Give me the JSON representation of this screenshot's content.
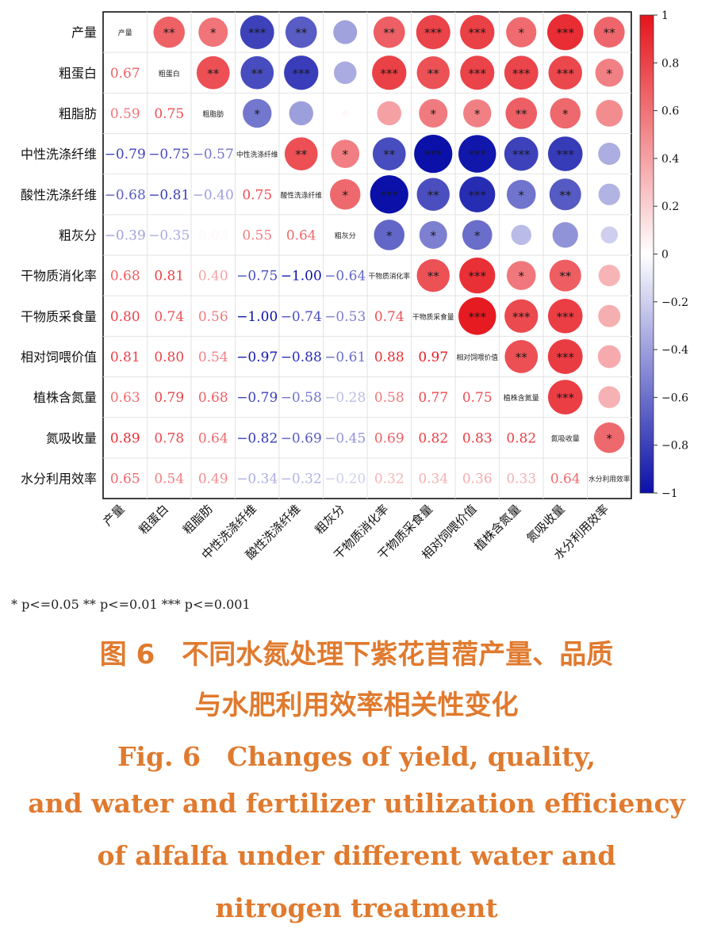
{
  "chart_data": {
    "type": "heatmap",
    "variables": [
      "产量",
      "粗蛋白",
      "粗脂肪",
      "中性洗涤纤维",
      "酸性洗涤纤维",
      "粗灰分",
      "干物质消化率",
      "干物质采食量",
      "相对饲喂价值",
      "植株含氮量",
      "氮吸收量",
      "水分利用效率"
    ],
    "diag_labels": [
      "产量",
      "粗蛋白",
      "粗脂肪",
      "中性洗涤纤维",
      "酸性洗涤纤维",
      "粗灰分",
      "干物质消化率",
      "干物质采食量",
      "相对饲喂价值",
      "植株含氮量",
      "氮吸收量",
      "水分利用效率"
    ],
    "matrix": [
      [
        1,
        0.67,
        0.59,
        -0.79,
        -0.68,
        -0.39,
        0.68,
        0.8,
        0.81,
        0.63,
        0.89,
        0.65
      ],
      [
        0.67,
        1,
        0.75,
        -0.75,
        -0.81,
        -0.35,
        0.81,
        0.74,
        0.8,
        0.79,
        0.78,
        0.54
      ],
      [
        0.59,
        0.75,
        1,
        -0.57,
        -0.4,
        0.03,
        0.4,
        0.56,
        0.54,
        0.68,
        0.64,
        0.49
      ],
      [
        -0.79,
        -0.75,
        -0.57,
        1,
        0.75,
        0.55,
        -0.75,
        -1.0,
        -0.97,
        -0.79,
        -0.82,
        -0.34
      ],
      [
        -0.68,
        -0.81,
        -0.4,
        0.75,
        1,
        0.64,
        -1.0,
        -0.74,
        -0.88,
        -0.58,
        -0.69,
        -0.32
      ],
      [
        -0.39,
        -0.35,
        0.03,
        0.55,
        0.64,
        1,
        -0.64,
        -0.53,
        -0.61,
        -0.28,
        -0.45,
        -0.2
      ],
      [
        0.68,
        0.81,
        0.4,
        -0.75,
        -1.0,
        -0.64,
        1,
        0.74,
        0.88,
        0.58,
        0.69,
        0.32
      ],
      [
        0.8,
        0.74,
        0.56,
        -1.0,
        -0.74,
        -0.53,
        0.74,
        1,
        0.97,
        0.77,
        0.82,
        0.34
      ],
      [
        0.81,
        0.8,
        0.54,
        -0.97,
        -0.88,
        -0.61,
        0.88,
        0.97,
        1,
        0.75,
        0.83,
        0.36
      ],
      [
        0.63,
        0.79,
        0.68,
        -0.79,
        -0.58,
        -0.28,
        0.58,
        0.77,
        0.75,
        1,
        0.82,
        0.33
      ],
      [
        0.89,
        0.78,
        0.64,
        -0.82,
        -0.69,
        -0.45,
        0.69,
        0.82,
        0.83,
        0.82,
        1,
        0.64
      ],
      [
        0.65,
        0.54,
        0.49,
        -0.34,
        -0.32,
        -0.2,
        0.32,
        0.34,
        0.36,
        0.33,
        0.64,
        1
      ]
    ],
    "lower_labels": [
      [
        "",
        "",
        "",
        "",
        "",
        "",
        "",
        "",
        "",
        "",
        "",
        ""
      ],
      [
        "0.67",
        "",
        "",
        "",
        "",
        "",
        "",
        "",
        "",
        "",
        "",
        ""
      ],
      [
        "0.59",
        "0.75",
        "",
        "",
        "",
        "",
        "",
        "",
        "",
        "",
        "",
        ""
      ],
      [
        "−0.79",
        "−0.75",
        "−0.57",
        "",
        "",
        "",
        "",
        "",
        "",
        "",
        "",
        ""
      ],
      [
        "−0.68",
        "−0.81",
        "−0.40",
        "0.75",
        "",
        "",
        "",
        "",
        "",
        "",
        "",
        ""
      ],
      [
        "−0.39",
        "−0.35",
        "0.03",
        "0.55",
        "0.64",
        "",
        "",
        "",
        "",
        "",
        "",
        ""
      ],
      [
        "0.68",
        "0.81",
        "0.40",
        "−0.75",
        "−1.00",
        "−0.64",
        "",
        "",
        "",
        "",
        "",
        ""
      ],
      [
        "0.80",
        "0.74",
        "0.56",
        "−1.00",
        "−0.74",
        "−0.53",
        "0.74",
        "",
        "",
        "",
        "",
        ""
      ],
      [
        "0.81",
        "0.80",
        "0.54",
        "−0.97",
        "−0.88",
        "−0.61",
        "0.88",
        "0.97",
        "",
        "",
        "",
        ""
      ],
      [
        "0.63",
        "0.79",
        "0.68",
        "−0.79",
        "−0.58",
        "−0.28",
        "0.58",
        "0.77",
        "0.75",
        "",
        "",
        ""
      ],
      [
        "0.89",
        "0.78",
        "0.64",
        "−0.82",
        "−0.69",
        "−0.45",
        "0.69",
        "0.82",
        "0.83",
        "0.82",
        "",
        ""
      ],
      [
        "0.65",
        "0.54",
        "0.49",
        "−0.34",
        "−0.32",
        "−0.20",
        "0.32",
        "0.34",
        "0.36",
        "0.33",
        "0.64",
        ""
      ]
    ],
    "upper_stars": [
      [
        "",
        "**",
        "*",
        "***",
        "**",
        "",
        "**",
        "***",
        "***",
        "*",
        "***",
        "**"
      ],
      [
        "",
        "",
        "**",
        "**",
        "***",
        "",
        "***",
        "**",
        "***",
        "***",
        "***",
        "*"
      ],
      [
        "",
        "",
        "",
        "*",
        "",
        "",
        "",
        "*",
        "*",
        "**",
        "*",
        ""
      ],
      [
        "",
        "",
        "",
        "",
        "**",
        "*",
        "**",
        "***",
        "***",
        "***",
        "***",
        ""
      ],
      [
        "",
        "",
        "",
        "",
        "",
        "*",
        "***",
        "**",
        "***",
        "*",
        "**",
        ""
      ],
      [
        "",
        "",
        "",
        "",
        "",
        "",
        "*",
        "*",
        "*",
        "",
        "",
        ""
      ],
      [
        "",
        "",
        "",
        "",
        "",
        "",
        "",
        "**",
        "***",
        "*",
        "**",
        ""
      ],
      [
        "",
        "",
        "",
        "",
        "",
        "",
        "",
        "",
        "***",
        "***",
        "***",
        ""
      ],
      [
        "",
        "",
        "",
        "",
        "",
        "",
        "",
        "",
        "",
        "**",
        "***",
        ""
      ],
      [
        "",
        "",
        "",
        "",
        "",
        "",
        "",
        "",
        "",
        "",
        "***",
        ""
      ],
      [
        "",
        "",
        "",
        "",
        "",
        "",
        "",
        "",
        "",
        "",
        "",
        "*"
      ],
      [
        "",
        "",
        "",
        "",
        "",
        "",
        "",
        "",
        "",
        "",
        "",
        ""
      ]
    ],
    "colorbar_ticks": [
      "1",
      "0.8",
      "0.6",
      "0.4",
      "0.2",
      "0",
      "−0.2",
      "−0.4",
      "−0.6",
      "−0.8",
      "−1"
    ],
    "colorbar_values": [
      1,
      0.8,
      0.6,
      0.4,
      0.2,
      0,
      -0.2,
      -0.4,
      -0.6,
      -0.8,
      -1
    ],
    "vmin": -1,
    "vmax": 1,
    "colors": {
      "positive": "#e5141b",
      "negative": "#0a10a8",
      "neutral": "#ffffff"
    },
    "legend_note": "* p<=0.05   ** p<=0.01   *** p<=0.001"
  },
  "caption": {
    "zh_line1": "图 6　不同水氮处理下紫花苜蓿产量、品质",
    "zh_line2": "与水肥利用效率相关性变化",
    "en_line1": "Fig. 6　Changes of yield, quality,",
    "en_line2": "and water and fertilizer utilization efficiency",
    "en_line3": "of alfalfa under different water and",
    "en_line4": "nitrogen treatment"
  }
}
